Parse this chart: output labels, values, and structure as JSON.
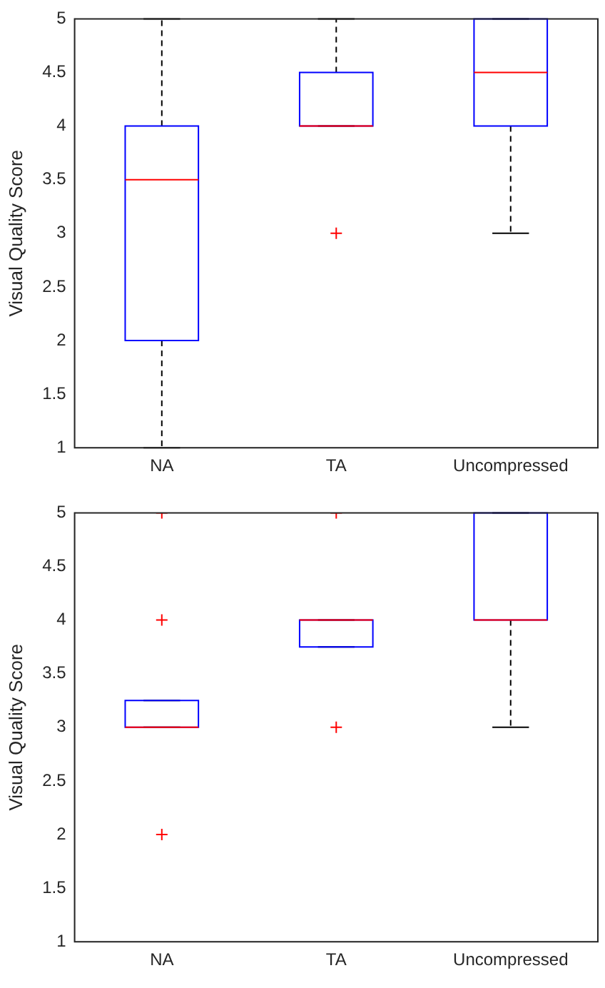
{
  "chart_data": [
    {
      "type": "box",
      "ylabel": "Visual Quality Score",
      "categories": [
        "NA",
        "TA",
        "Uncompressed"
      ],
      "ylim": [
        1,
        5
      ],
      "yticks": [
        1,
        1.5,
        2,
        2.5,
        3,
        3.5,
        4,
        4.5,
        5
      ],
      "grid": false,
      "legend": false,
      "series": [
        {
          "color": "#0000ff",
          "boxes": [
            {
              "low": 1,
              "q1": 2,
              "median": 3.5,
              "q3": 4,
              "high": 5
            },
            {
              "low": 4,
              "q1": 4,
              "median": 4,
              "q3": 4.5,
              "high": 5,
              "outliers": [
                3
              ]
            },
            {
              "low": 3,
              "q1": 4,
              "median": 4.5,
              "q3": 5,
              "high": 5
            }
          ]
        }
      ]
    },
    {
      "type": "box",
      "ylabel": "Visual Quality Score",
      "categories": [
        "NA",
        "TA",
        "Uncompressed"
      ],
      "ylim": [
        1,
        5
      ],
      "yticks": [
        1,
        1.5,
        2,
        2.5,
        3,
        3.5,
        4,
        4.5,
        5
      ],
      "grid": false,
      "legend": false,
      "series": [
        {
          "color": "#0000ff",
          "boxes": [
            {
              "low": 3,
              "q1": 3,
              "median": 3,
              "q3": 3.25,
              "high": 3.25,
              "outliers": [
                2,
                4,
                5
              ]
            },
            {
              "low": 3.75,
              "q1": 3.75,
              "median": 4,
              "q3": 4,
              "high": 4,
              "outliers": [
                3,
                5
              ]
            },
            {
              "low": 3,
              "q1": 4,
              "median": 4,
              "q3": 5,
              "high": 5
            }
          ]
        }
      ]
    }
  ]
}
